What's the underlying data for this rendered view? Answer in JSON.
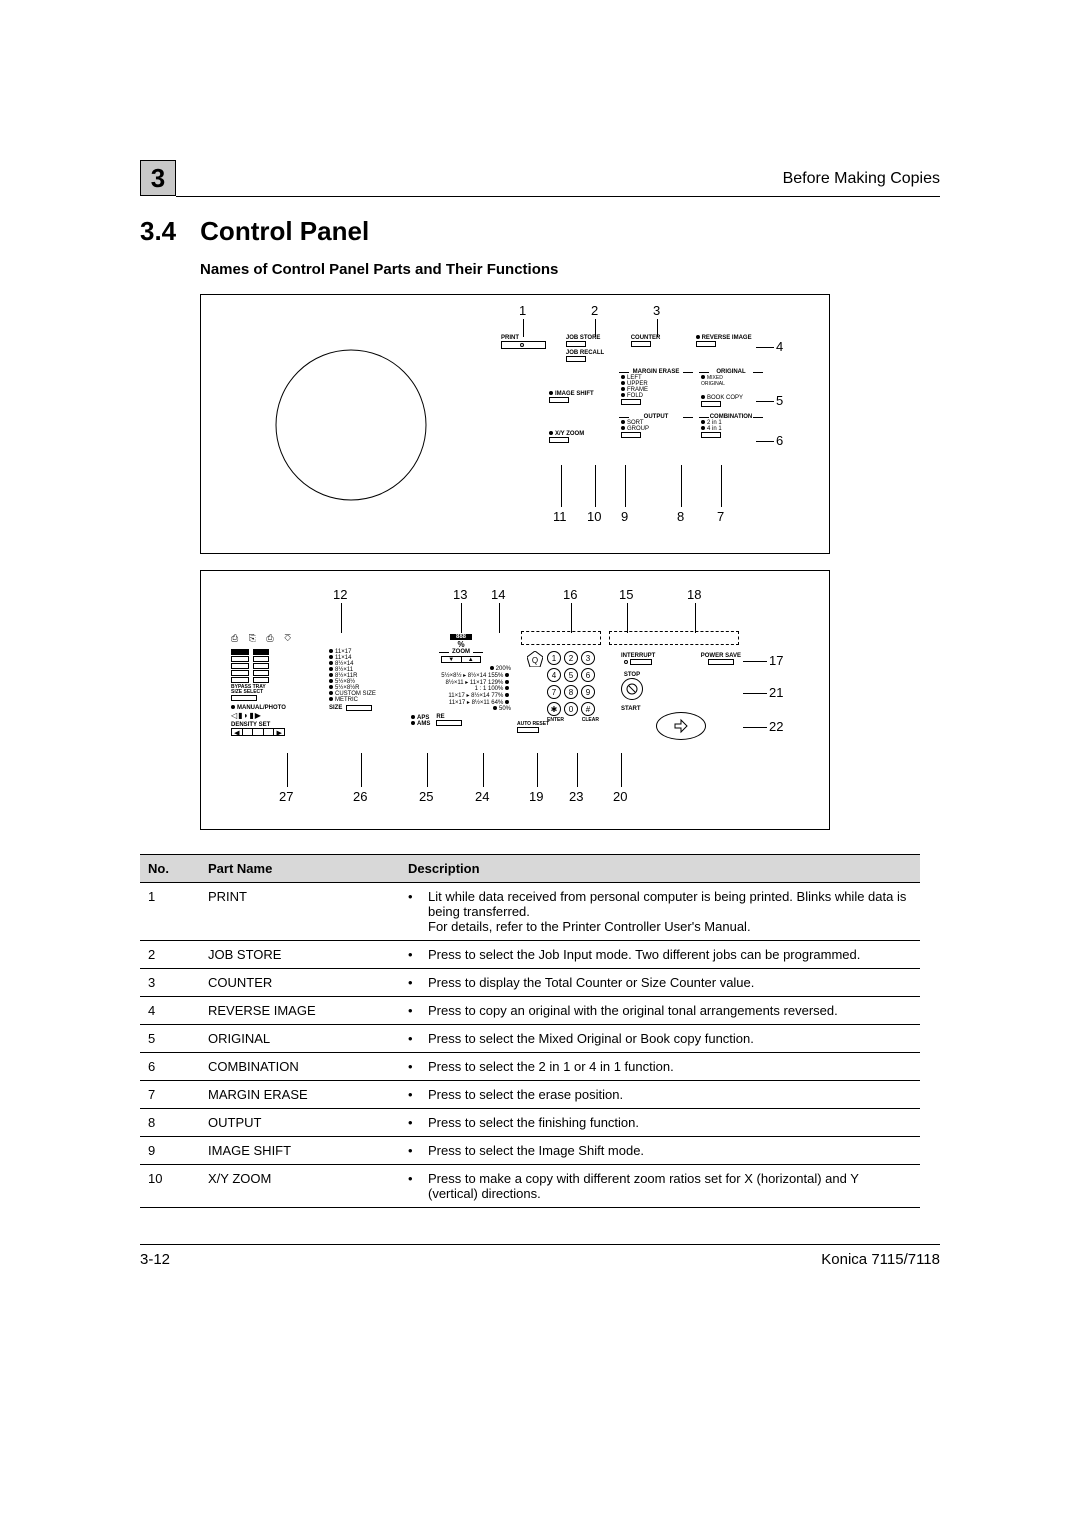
{
  "header": {
    "chapter_number": "3",
    "top_right": "Before Making Copies"
  },
  "section": {
    "number": "3.4",
    "title": "Control Panel",
    "subheading": "Names of Control Panel Parts and Their Functions"
  },
  "diagram1": {
    "callouts_top": [
      "1",
      "2",
      "3"
    ],
    "callouts_right": [
      "4",
      "5",
      "6"
    ],
    "callouts_bottom": [
      "11",
      "10",
      "9",
      "8",
      "7"
    ],
    "labels": {
      "print": "PRINT",
      "job_store": "JOB STORE",
      "job_recall": "JOB RECALL",
      "counter": "COUNTER",
      "reverse_image": "REVERSE IMAGE",
      "margin_erase": "MARGIN ERASE",
      "left": "LEFT",
      "upper": "UPPER",
      "frame": "FRAME",
      "fold": "FOLD",
      "original": "ORIGINAL",
      "mixed_original": "MIXED\nORIGINAL",
      "book_copy": "BOOK COPY",
      "image_shift": "IMAGE SHIFT",
      "output": "OUTPUT",
      "sort": "SORT",
      "group": "GROUP",
      "combination": "COMBINATION",
      "2in1": "2 in 1",
      "4in1": "4 in 1",
      "xy_zoom": "X/Y ZOOM"
    }
  },
  "diagram2": {
    "callouts_top": [
      "12",
      "13",
      "14",
      "16",
      "15",
      "18"
    ],
    "callouts_right": [
      "17",
      "21",
      "22"
    ],
    "callouts_bottom": [
      "27",
      "26",
      "25",
      "24",
      "19",
      "23",
      "20"
    ],
    "labels": {
      "bypass": "BYPASS TRAY\nSIZE SELECT",
      "manual_photo": "MANUAL/PHOTO",
      "density": "DENSITY SET",
      "paper_sizes": [
        "11×17",
        "11×14",
        "8½×14",
        "8½×11",
        "8½×11R",
        "5½×8½",
        "5½×8½R",
        "CUSTOM SIZE",
        "METRIC"
      ],
      "size": "SIZE",
      "zoom": "ZOOM",
      "zoom_ratios": [
        "200%",
        "5½×8½ ▸ 8½×14  155%",
        "8½×11 ▸ 11×17  129%",
        "1 : 1       100%",
        "11×17 ▸ 8½×14   77%",
        "11×17 ▸ 8½×11   64%",
        "50%"
      ],
      "aps": "APS",
      "ams": "AMS",
      "re": "RE",
      "auto_reset": "AUTO RESET",
      "enter": "ENTER",
      "clear": "CLEAR",
      "interrupt": "INTERRUPT",
      "power_save": "POWER SAVE",
      "stop": "STOP",
      "start": "START",
      "percent": "%",
      "q_badge": "Q",
      "888": "888"
    }
  },
  "table": {
    "columns": [
      "No.",
      "Part Name",
      "Description"
    ],
    "rows": [
      {
        "no": "1",
        "name": "PRINT",
        "desc": "Lit while data received from personal computer is being printed. Blinks while data is being transferred.\nFor details, refer to the Printer Controller User's Manual."
      },
      {
        "no": "2",
        "name": "JOB STORE",
        "desc": "Press to select the Job Input mode.  Two different jobs can be programmed."
      },
      {
        "no": "3",
        "name": "COUNTER",
        "desc": "Press to display the Total Counter or Size Counter value."
      },
      {
        "no": "4",
        "name": "REVERSE IMAGE",
        "desc": "Press to copy an original with the original tonal arrangements reversed."
      },
      {
        "no": "5",
        "name": "ORIGINAL",
        "desc": "Press to select the Mixed Original or Book copy function."
      },
      {
        "no": "6",
        "name": "COMBINATION",
        "desc": "Press to select the 2 in 1 or 4 in 1 function."
      },
      {
        "no": "7",
        "name": "MARGIN ERASE",
        "desc": "Press to select the erase position."
      },
      {
        "no": "8",
        "name": "OUTPUT",
        "desc": "Press to select the finishing function."
      },
      {
        "no": "9",
        "name": "IMAGE SHIFT",
        "desc": "Press to select the Image Shift mode."
      },
      {
        "no": "10",
        "name": "X/Y ZOOM",
        "desc": "Press to make a copy with different zoom ratios set for X (horizontal) and Y (vertical) directions."
      }
    ]
  },
  "footer": {
    "left": "3-12",
    "right": "Konica 7115/7118"
  },
  "colors": {
    "badge_bg": "#c8c8c8",
    "th_bg": "#d8d8d8",
    "text": "#000000",
    "bg": "#ffffff"
  }
}
